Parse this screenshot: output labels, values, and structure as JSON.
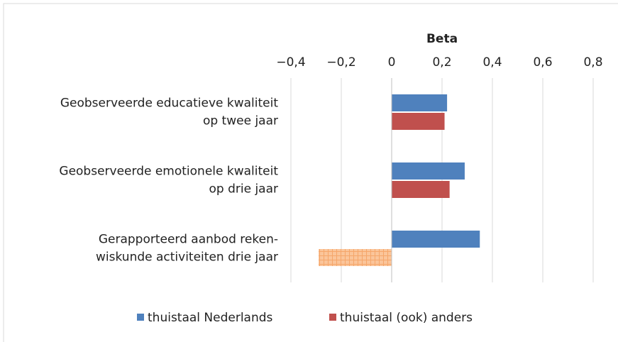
{
  "chart_data": {
    "type": "hbar",
    "x_axis_title": "Beta",
    "categories": [
      "Geobserveerde educatieve kwaliteit\nop twee jaar",
      "Geobserveerde emotionele kwaliteit\nop drie jaar",
      "Gerapporteerd aanbod reken-\nwiskunde activiteiten drie jaar"
    ],
    "series": [
      {
        "name": "thuistaal Nederlands",
        "color": "#4f81bd",
        "values": [
          0.22,
          0.29,
          0.35
        ]
      },
      {
        "name": "thuistaal (ook) anders",
        "color": "#c0504d",
        "colors": [
          "#c0504d",
          "#c0504d",
          "#fbc59a"
        ],
        "values": [
          0.21,
          0.23,
          -0.29
        ]
      }
    ],
    "xlim": [
      -0.4,
      0.8
    ],
    "xticks": [
      {
        "value": -0.4,
        "label": "−0,4"
      },
      {
        "value": -0.2,
        "label": "−0,2"
      },
      0,
      {
        "value": 0.2,
        "label": "0,2"
      },
      {
        "value": 0.4,
        "label": "0,4"
      },
      {
        "value": 0.6,
        "label": "0,6"
      },
      {
        "value": 0.8,
        "label": "0,8"
      }
    ],
    "grid": true,
    "legend": "bottom"
  }
}
